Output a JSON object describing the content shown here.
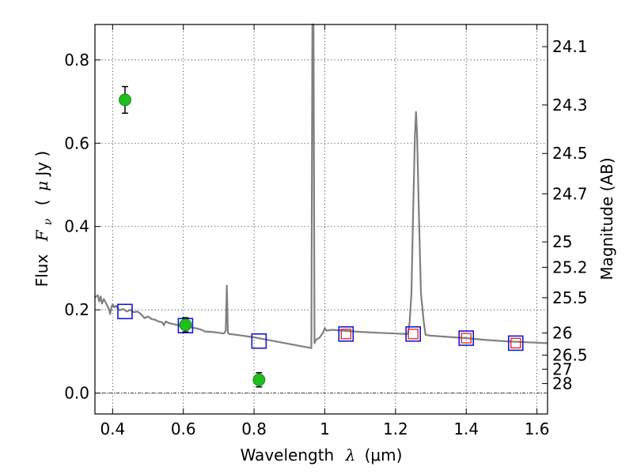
{
  "chart_data": {
    "type": "scatter",
    "xlabel": "Wavelength",
    "xlabel_symbol": "λ",
    "xlabel_unit": "(μm)",
    "ylabel": "Flux",
    "ylabel_symbol_main": "F",
    "ylabel_symbol_sub": "ν",
    "ylabel_unit_open": "(",
    "ylabel_unit_mu": "μ",
    "ylabel_unit_rest": "Jy )",
    "ylabel_right": "Magnitude (AB)",
    "xlim": [
      0.35,
      1.63
    ],
    "ylim": [
      -0.05,
      0.885
    ],
    "x_ticks": [
      0.4,
      0.6,
      0.8,
      1.0,
      1.2,
      1.4,
      1.6
    ],
    "x_tick_labels": [
      "0.4",
      "0.6",
      "0.8",
      "1",
      "1.2",
      "1.4",
      "1.6"
    ],
    "y_ticks": [
      0.0,
      0.2,
      0.4,
      0.6,
      0.8
    ],
    "y_tick_labels": [
      "0.0",
      "0.2",
      "0.4",
      "0.6",
      "0.8"
    ],
    "right_ticks": [
      {
        "flux": 0.8318,
        "label": "24.1"
      },
      {
        "flux": 0.6918,
        "label": "24.3"
      },
      {
        "flux": 0.5754,
        "label": "24.5"
      },
      {
        "flux": 0.4786,
        "label": "24.7"
      },
      {
        "flux": 0.3631,
        "label": "25"
      },
      {
        "flux": 0.302,
        "label": "25.2"
      },
      {
        "flux": 0.2291,
        "label": "25.5"
      },
      {
        "flux": 0.1445,
        "label": "26"
      },
      {
        "flux": 0.0912,
        "label": "26.5"
      },
      {
        "flux": 0.0575,
        "label": "27"
      },
      {
        "flux": 0.0229,
        "label": "28"
      }
    ],
    "grid": true,
    "zero_line": true,
    "series": [
      {
        "kind": "model-spectrum",
        "color": "#808080",
        "points": [
          [
            0.35,
            0.23
          ],
          [
            0.358,
            0.235
          ],
          [
            0.362,
            0.22
          ],
          [
            0.366,
            0.232
          ],
          [
            0.37,
            0.215
          ],
          [
            0.375,
            0.226
          ],
          [
            0.38,
            0.218
          ],
          [
            0.385,
            0.21
          ],
          [
            0.39,
            0.2
          ],
          [
            0.393,
            0.19
          ],
          [
            0.396,
            0.205
          ],
          [
            0.4,
            0.213
          ],
          [
            0.405,
            0.206
          ],
          [
            0.41,
            0.21
          ],
          [
            0.415,
            0.203
          ],
          [
            0.42,
            0.199
          ],
          [
            0.43,
            0.202
          ],
          [
            0.44,
            0.196
          ],
          [
            0.45,
            0.2
          ],
          [
            0.46,
            0.194
          ],
          [
            0.47,
            0.196
          ],
          [
            0.48,
            0.19
          ],
          [
            0.49,
            0.18
          ],
          [
            0.5,
            0.184
          ],
          [
            0.51,
            0.178
          ],
          [
            0.52,
            0.176
          ],
          [
            0.53,
            0.172
          ],
          [
            0.54,
            0.17
          ],
          [
            0.545,
            0.163
          ],
          [
            0.55,
            0.172
          ],
          [
            0.56,
            0.168
          ],
          [
            0.575,
            0.165
          ],
          [
            0.59,
            0.162
          ],
          [
            0.6,
            0.16
          ],
          [
            0.62,
            0.158
          ],
          [
            0.64,
            0.155
          ],
          [
            0.655,
            0.151
          ],
          [
            0.66,
            0.148
          ],
          [
            0.68,
            0.147
          ],
          [
            0.7,
            0.145
          ],
          [
            0.715,
            0.143
          ],
          [
            0.72,
            0.15
          ],
          [
            0.723,
            0.258
          ],
          [
            0.726,
            0.145
          ],
          [
            0.73,
            0.142
          ],
          [
            0.75,
            0.14
          ],
          [
            0.8,
            0.134
          ],
          [
            0.85,
            0.126
          ],
          [
            0.9,
            0.118
          ],
          [
            0.95,
            0.11
          ],
          [
            0.962,
            0.108
          ],
          [
            0.965,
            0.885
          ],
          [
            0.968,
            0.885
          ],
          [
            0.971,
            0.12
          ],
          [
            0.975,
            0.128
          ],
          [
            0.985,
            0.133
          ],
          [
            0.995,
            0.145
          ],
          [
            1.0,
            0.156
          ],
          [
            1.005,
            0.15
          ],
          [
            1.02,
            0.152
          ],
          [
            1.05,
            0.15
          ],
          [
            1.1,
            0.147
          ],
          [
            1.15,
            0.145
          ],
          [
            1.2,
            0.143
          ],
          [
            1.235,
            0.142
          ],
          [
            1.24,
            0.17
          ],
          [
            1.245,
            0.24
          ],
          [
            1.25,
            0.44
          ],
          [
            1.255,
            0.62
          ],
          [
            1.258,
            0.675
          ],
          [
            1.261,
            0.62
          ],
          [
            1.266,
            0.44
          ],
          [
            1.272,
            0.24
          ],
          [
            1.28,
            0.17
          ],
          [
            1.285,
            0.14
          ],
          [
            1.3,
            0.138
          ],
          [
            1.35,
            0.135
          ],
          [
            1.4,
            0.132
          ],
          [
            1.45,
            0.128
          ],
          [
            1.5,
            0.125
          ],
          [
            1.55,
            0.123
          ],
          [
            1.6,
            0.121
          ],
          [
            1.63,
            0.12
          ]
        ]
      },
      {
        "kind": "observed-photometry",
        "marker": "circle",
        "color": "#1fbf1f",
        "points": [
          {
            "x": 0.435,
            "y": 0.704,
            "yerr": 0.032
          },
          {
            "x": 0.606,
            "y": 0.164,
            "yerr": 0.017
          },
          {
            "x": 0.814,
            "y": 0.032,
            "yerr": 0.017
          }
        ]
      },
      {
        "kind": "model-photometry",
        "marker": "square",
        "color": "#1616d0",
        "points": [
          {
            "x": 0.435,
            "y": 0.196
          },
          {
            "x": 0.606,
            "y": 0.162
          },
          {
            "x": 0.814,
            "y": 0.125
          },
          {
            "x": 1.06,
            "y": 0.142
          },
          {
            "x": 1.25,
            "y": 0.142
          },
          {
            "x": 1.4,
            "y": 0.132
          },
          {
            "x": 1.54,
            "y": 0.12
          }
        ]
      },
      {
        "kind": "model-photometry-red",
        "marker": "square",
        "color": "#e02020",
        "points": [
          {
            "x": 1.06,
            "y": 0.142
          },
          {
            "x": 1.25,
            "y": 0.142
          },
          {
            "x": 1.4,
            "y": 0.132
          },
          {
            "x": 1.54,
            "y": 0.12
          }
        ]
      }
    ]
  }
}
